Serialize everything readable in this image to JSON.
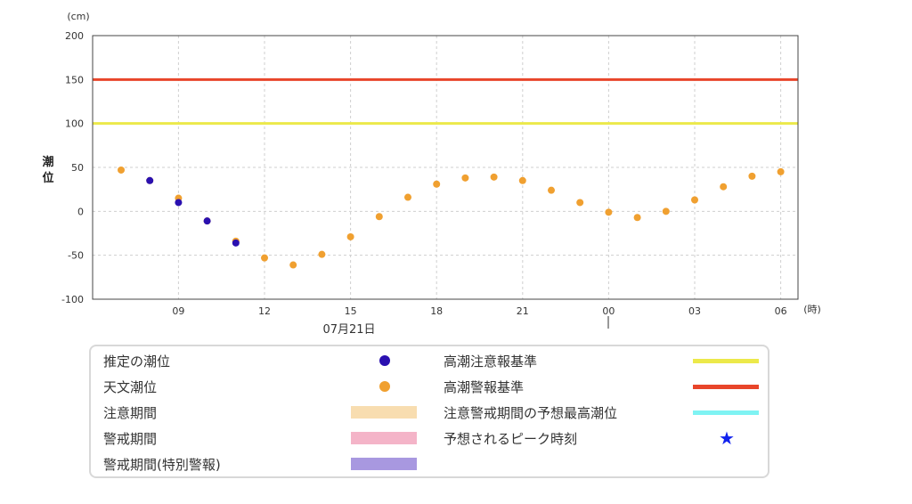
{
  "chart_data": {
    "type": "scatter",
    "y_unit": "(cm)",
    "x_unit": "(時)",
    "ylabel": "潮位",
    "date_label": "07月21日",
    "ylim": [
      -100,
      200
    ],
    "yticks": [
      200,
      150,
      100,
      50,
      0,
      -50,
      -100
    ],
    "x_tick_labels": [
      "09",
      "12",
      "15",
      "18",
      "21",
      "00",
      "03",
      "06"
    ],
    "grid": true,
    "reference_lines": [
      {
        "name": "高潮警報基準",
        "value": 150,
        "color": "#e8452a"
      },
      {
        "name": "高潮注意報基準",
        "value": 100,
        "color": "#ece94a"
      }
    ],
    "series": [
      {
        "name": "天文潮位",
        "color": "#f0a030",
        "x": [
          "07",
          "08",
          "09",
          "10",
          "11",
          "12",
          "13",
          "14",
          "15",
          "16",
          "17",
          "18",
          "19",
          "20",
          "21",
          "22",
          "23",
          "00",
          "01",
          "02",
          "03",
          "04",
          "05",
          "06"
        ],
        "values": [
          47,
          35,
          15,
          -11,
          -34,
          -53,
          -61,
          -49,
          -29,
          -6,
          16,
          31,
          38,
          39,
          35,
          24,
          10,
          -1,
          -7,
          0,
          13,
          28,
          40,
          45
        ]
      },
      {
        "name": "推定の潮位",
        "color": "#2a10b0",
        "x": [
          "08",
          "09",
          "10",
          "11"
        ],
        "values": [
          35,
          10,
          -11,
          -36
        ]
      }
    ]
  },
  "legend": {
    "items": [
      {
        "label": "推定の潮位",
        "color": "#2a10b0",
        "symbol": "dot"
      },
      {
        "label": "天文潮位",
        "color": "#f0a030",
        "symbol": "dot"
      },
      {
        "label": "注意期間",
        "color": "#f8ddb0",
        "symbol": "band"
      },
      {
        "label": "警戒期間",
        "color": "#f4b4c8",
        "symbol": "band"
      },
      {
        "label": "警戒期間(特別警報)",
        "color": "#a898e0",
        "symbol": "band"
      },
      {
        "label": "高潮注意報基準",
        "color": "#ece94a",
        "symbol": "line"
      },
      {
        "label": "高潮警報基準",
        "color": "#e8452a",
        "symbol": "line"
      },
      {
        "label": "注意警戒期間の予想最高潮位",
        "color": "#7ff3f3",
        "symbol": "line"
      },
      {
        "label": "予想されるピーク時刻",
        "color": "#1122ee",
        "symbol": "star"
      }
    ]
  }
}
